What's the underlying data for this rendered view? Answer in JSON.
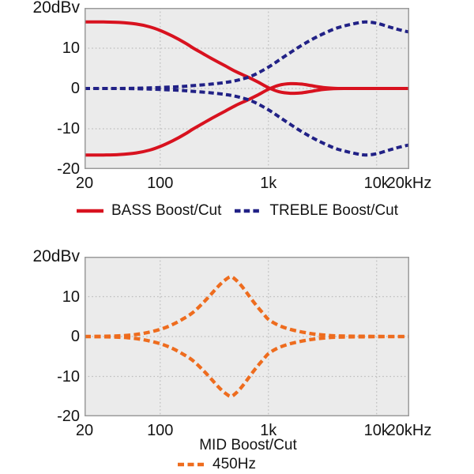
{
  "page": {
    "background": "#ffffff",
    "description_visible_text_only": true
  },
  "chart_data": [
    {
      "type": "line",
      "id": "bass-treble-response",
      "x_scale": "log",
      "xlim": [
        20,
        20000
      ],
      "ylim": [
        -20,
        20
      ],
      "x_ticks": [
        {
          "value": 20,
          "label": "20"
        },
        {
          "value": 100,
          "label": "100"
        },
        {
          "value": 1000,
          "label": "1k"
        },
        {
          "value": 10000,
          "label": "10k"
        },
        {
          "value": 20000,
          "label": "20kHz"
        }
      ],
      "y_ticks": [
        {
          "value": 20,
          "label": "20dBv"
        },
        {
          "value": 10,
          "label": "10"
        },
        {
          "value": 0,
          "label": "0"
        },
        {
          "value": -10,
          "label": "-10"
        },
        {
          "value": -20,
          "label": "-20"
        }
      ],
      "x_gridlines": [
        100,
        1000,
        10000
      ],
      "y_gridlines": [
        10,
        0,
        -10
      ],
      "colors": {
        "plot_bg": "#ebebeb",
        "grid": "#bdbdbd",
        "border": "#9b9b9b",
        "text": "#141414"
      },
      "series": [
        {
          "id": "bass-boost",
          "color": "#d8121f",
          "dash": "none",
          "width": 4,
          "points": [
            [
              20,
              16.5
            ],
            [
              30,
              16.5
            ],
            [
              42,
              16.4
            ],
            [
              60,
              16.0
            ],
            [
              80,
              15.3
            ],
            [
              100,
              14.4
            ],
            [
              130,
              13.0
            ],
            [
              170,
              11.3
            ],
            [
              200,
              10.1
            ],
            [
              250,
              8.6
            ],
            [
              300,
              7.4
            ],
            [
              400,
              5.6
            ],
            [
              500,
              4.2
            ],
            [
              650,
              2.8
            ],
            [
              800,
              1.6
            ],
            [
              1000,
              0.2
            ],
            [
              1250,
              -0.8
            ],
            [
              1600,
              -1.2
            ],
            [
              2000,
              -1.1
            ],
            [
              2500,
              -0.7
            ],
            [
              3200,
              -0.25
            ],
            [
              4000,
              -0.05
            ],
            [
              5000,
              0
            ],
            [
              8000,
              0
            ],
            [
              12000,
              0
            ],
            [
              20000,
              0
            ]
          ]
        },
        {
          "id": "bass-cut",
          "color": "#d8121f",
          "dash": "none",
          "width": 4,
          "points": [
            [
              20,
              -16.5
            ],
            [
              30,
              -16.5
            ],
            [
              42,
              -16.4
            ],
            [
              60,
              -16.0
            ],
            [
              80,
              -15.3
            ],
            [
              100,
              -14.4
            ],
            [
              130,
              -13.0
            ],
            [
              170,
              -11.3
            ],
            [
              200,
              -10.1
            ],
            [
              250,
              -8.6
            ],
            [
              300,
              -7.4
            ],
            [
              400,
              -5.6
            ],
            [
              500,
              -4.2
            ],
            [
              650,
              -2.8
            ],
            [
              800,
              -1.6
            ],
            [
              1000,
              -0.2
            ],
            [
              1250,
              0.8
            ],
            [
              1600,
              1.2
            ],
            [
              2000,
              1.1
            ],
            [
              2500,
              0.7
            ],
            [
              3200,
              0.25
            ],
            [
              4000,
              0.05
            ],
            [
              5000,
              0
            ],
            [
              8000,
              0
            ],
            [
              12000,
              0
            ],
            [
              20000,
              0
            ]
          ]
        },
        {
          "id": "treble-boost",
          "color": "#212186",
          "dash": "7 4.2",
          "width": 4,
          "points": [
            [
              20,
              0
            ],
            [
              40,
              0
            ],
            [
              70,
              0.1
            ],
            [
              100,
              0.25
            ],
            [
              150,
              0.45
            ],
            [
              200,
              0.7
            ],
            [
              300,
              1.1
            ],
            [
              400,
              1.5
            ],
            [
              500,
              1.95
            ],
            [
              700,
              3.1
            ],
            [
              1000,
              5.3
            ],
            [
              1400,
              7.9
            ],
            [
              2000,
              10.6
            ],
            [
              2800,
              12.8
            ],
            [
              4000,
              14.7
            ],
            [
              5000,
              15.5
            ],
            [
              6500,
              16.2
            ],
            [
              8000,
              16.5
            ],
            [
              10000,
              16.2
            ],
            [
              13000,
              15.3
            ],
            [
              16000,
              14.6
            ],
            [
              20000,
              14
            ]
          ]
        },
        {
          "id": "treble-cut",
          "color": "#212186",
          "dash": "7 4.2",
          "width": 4,
          "points": [
            [
              20,
              0
            ],
            [
              40,
              0
            ],
            [
              70,
              -0.1
            ],
            [
              100,
              -0.25
            ],
            [
              150,
              -0.45
            ],
            [
              200,
              -0.7
            ],
            [
              300,
              -1.1
            ],
            [
              400,
              -1.5
            ],
            [
              500,
              -1.95
            ],
            [
              700,
              -3.1
            ],
            [
              1000,
              -5.3
            ],
            [
              1400,
              -7.9
            ],
            [
              2000,
              -10.6
            ],
            [
              2800,
              -12.8
            ],
            [
              4000,
              -14.7
            ],
            [
              5000,
              -15.5
            ],
            [
              6500,
              -16.2
            ],
            [
              8000,
              -16.5
            ],
            [
              10000,
              -16.2
            ],
            [
              13000,
              -15.3
            ],
            [
              16000,
              -14.6
            ],
            [
              20000,
              -14
            ]
          ]
        }
      ],
      "legend": [
        {
          "label": "BASS Boost/Cut",
          "color": "#d8121f",
          "dash": "none"
        },
        {
          "label": "TREBLE Boost/Cut",
          "color": "#212186",
          "dash": "7.5 4.2"
        }
      ]
    },
    {
      "type": "line",
      "id": "mid-response",
      "x_scale": "log",
      "xlim": [
        20,
        20000
      ],
      "ylim": [
        -20,
        20
      ],
      "x_axis_title": "MID Boost/Cut",
      "x_ticks": [
        {
          "value": 20,
          "label": "20"
        },
        {
          "value": 100,
          "label": "100"
        },
        {
          "value": 1000,
          "label": "1k"
        },
        {
          "value": 10000,
          "label": "10k"
        },
        {
          "value": 20000,
          "label": "20kHz"
        }
      ],
      "y_ticks": [
        {
          "value": 20,
          "label": "20dBv"
        },
        {
          "value": 10,
          "label": "10"
        },
        {
          "value": 0,
          "label": "0"
        },
        {
          "value": -10,
          "label": "-10"
        },
        {
          "value": -20,
          "label": "-20"
        }
      ],
      "x_gridlines": [
        100,
        1000,
        10000
      ],
      "y_gridlines": [
        10,
        0,
        -10
      ],
      "colors": {
        "plot_bg": "#ebebeb",
        "grid": "#bdbdbd",
        "border": "#9b9b9b",
        "text": "#141414"
      },
      "series": [
        {
          "id": "mid-boost",
          "color": "#ee6c1e",
          "dash": "8 4.5",
          "width": 4.3,
          "points": [
            [
              20,
              0
            ],
            [
              35,
              0.1
            ],
            [
              50,
              0.3
            ],
            [
              70,
              0.8
            ],
            [
              100,
              1.8
            ],
            [
              130,
              3.0
            ],
            [
              160,
              4.3
            ],
            [
              200,
              6.0
            ],
            [
              250,
              8.5
            ],
            [
              300,
              10.8
            ],
            [
              350,
              12.8
            ],
            [
              400,
              14.2
            ],
            [
              450,
              15.0
            ],
            [
              500,
              14.2
            ],
            [
              560,
              12.8
            ],
            [
              630,
              11.0
            ],
            [
              700,
              9.3
            ],
            [
              800,
              7.3
            ],
            [
              900,
              5.7
            ],
            [
              1000,
              4.3
            ],
            [
              1200,
              3.0
            ],
            [
              1500,
              2.0
            ],
            [
              1900,
              1.3
            ],
            [
              2400,
              0.8
            ],
            [
              3000,
              0.45
            ],
            [
              4000,
              0.2
            ],
            [
              5500,
              0.1
            ],
            [
              8000,
              0.05
            ],
            [
              12000,
              0
            ],
            [
              20000,
              0
            ]
          ]
        },
        {
          "id": "mid-cut",
          "color": "#ee6c1e",
          "dash": "8 4.5",
          "width": 4.3,
          "points": [
            [
              20,
              0
            ],
            [
              35,
              -0.1
            ],
            [
              50,
              -0.3
            ],
            [
              70,
              -0.8
            ],
            [
              100,
              -1.8
            ],
            [
              130,
              -3.0
            ],
            [
              160,
              -4.3
            ],
            [
              200,
              -6.0
            ],
            [
              250,
              -8.5
            ],
            [
              300,
              -10.8
            ],
            [
              350,
              -12.8
            ],
            [
              400,
              -14.2
            ],
            [
              450,
              -15.0
            ],
            [
              500,
              -14.2
            ],
            [
              560,
              -12.8
            ],
            [
              630,
              -11.0
            ],
            [
              700,
              -9.3
            ],
            [
              800,
              -7.3
            ],
            [
              900,
              -5.7
            ],
            [
              1000,
              -4.3
            ],
            [
              1200,
              -3.0
            ],
            [
              1500,
              -2.0
            ],
            [
              1900,
              -1.3
            ],
            [
              2400,
              -0.8
            ],
            [
              3000,
              -0.45
            ],
            [
              4000,
              -0.2
            ],
            [
              5500,
              -0.1
            ],
            [
              8000,
              -0.05
            ],
            [
              12000,
              0
            ],
            [
              20000,
              0
            ]
          ]
        }
      ],
      "legend": [
        {
          "label": "450Hz",
          "color": "#ee6c1e",
          "dash": "8 4.5"
        }
      ]
    }
  ]
}
